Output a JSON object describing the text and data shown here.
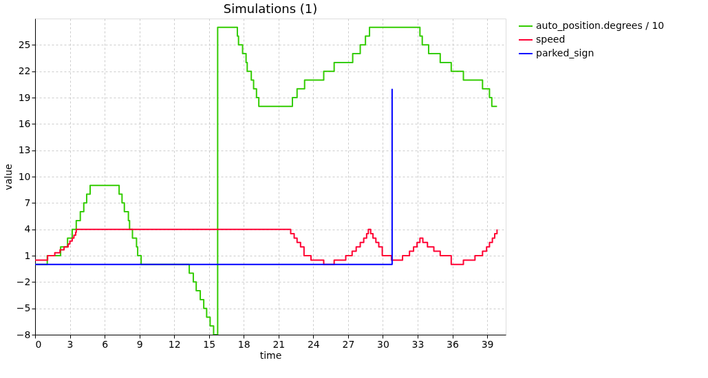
{
  "chart_data": {
    "type": "step",
    "title": "Simulations (1)",
    "xlabel": "time",
    "ylabel": "value",
    "xlim": [
      0,
      40.6
    ],
    "xticks": [
      0,
      3,
      6,
      9,
      12,
      15,
      18,
      21,
      24,
      27,
      30,
      33,
      36,
      39
    ],
    "ylim": [
      -8,
      28
    ],
    "yticks": [
      -8,
      -5,
      -2,
      1,
      4,
      7,
      10,
      13,
      16,
      19,
      22,
      25
    ],
    "grid": true,
    "legend": "right",
    "line_style": "solid",
    "marker": "none",
    "series": [
      {
        "name": "auto_position.degrees / 10",
        "color": "#33cc00",
        "x": [
          0,
          1.05,
          2.2,
          2.8,
          3.2,
          3.55,
          3.9,
          4.2,
          4.45,
          4.75,
          7.25,
          7.5,
          7.7,
          8.05,
          8.15,
          8.4,
          8.75,
          8.85,
          9.15,
          13.3,
          13.65,
          13.9,
          14.25,
          14.55,
          14.8,
          15.1,
          15.4,
          15.75,
          17.45,
          17.55,
          17.9,
          18.2,
          18.3,
          18.65,
          18.85,
          19.1,
          19.3,
          22.2,
          22.6,
          23.25,
          24.9,
          25.8,
          27.4,
          28.05,
          28.5,
          28.85,
          33.2,
          33.4,
          33.95,
          34.95,
          35.9,
          36.95,
          38.6,
          39.2,
          39.4,
          39.85
        ],
        "values": [
          0,
          1,
          2,
          3,
          4,
          5,
          6,
          7,
          8,
          9,
          8,
          7,
          6,
          5,
          4,
          3,
          2,
          1,
          0,
          -1,
          -2,
          -3,
          -4,
          -5,
          -6,
          -7,
          -8,
          27,
          26,
          25,
          24,
          23,
          22,
          21,
          20,
          19,
          18,
          19,
          20,
          21,
          22,
          23,
          24,
          25,
          26,
          27,
          26,
          25,
          24,
          23,
          22,
          21,
          20,
          19,
          18,
          18
        ]
      },
      {
        "name": "speed",
        "color": "#ff0033",
        "x": [
          0,
          1.08,
          1.7,
          2.15,
          2.5,
          2.85,
          3.0,
          3.2,
          3.35,
          3.5,
          3.55,
          22.05,
          22.35,
          22.6,
          22.9,
          23.2,
          23.8,
          24.9,
          25.8,
          26.8,
          27.35,
          27.7,
          28.05,
          28.35,
          28.6,
          28.75,
          28.95,
          29.15,
          29.4,
          29.65,
          29.95,
          30.75,
          31.7,
          32.3,
          32.65,
          32.95,
          33.2,
          33.45,
          33.85,
          34.4,
          34.95,
          35.9,
          36.95,
          37.95,
          38.6,
          38.95,
          39.2,
          39.45,
          39.65,
          39.85
        ],
        "values": [
          0.5,
          1,
          1.33,
          1.67,
          2,
          2.33,
          2.67,
          3,
          3.33,
          3.67,
          4,
          3.5,
          3,
          2.5,
          2,
          1,
          0.5,
          0,
          0.5,
          1,
          1.5,
          2,
          2.5,
          3,
          3.5,
          4,
          3.5,
          3,
          2.5,
          2,
          1,
          0.5,
          1,
          1.5,
          2,
          2.5,
          3,
          2.5,
          2,
          1.5,
          1,
          0,
          0.5,
          1,
          1.5,
          2,
          2.5,
          3,
          3.5,
          4
        ]
      },
      {
        "name": "parked_sign",
        "color": "#0000ff",
        "x": [
          0,
          30.8
        ],
        "values": [
          0,
          20
        ]
      }
    ]
  }
}
